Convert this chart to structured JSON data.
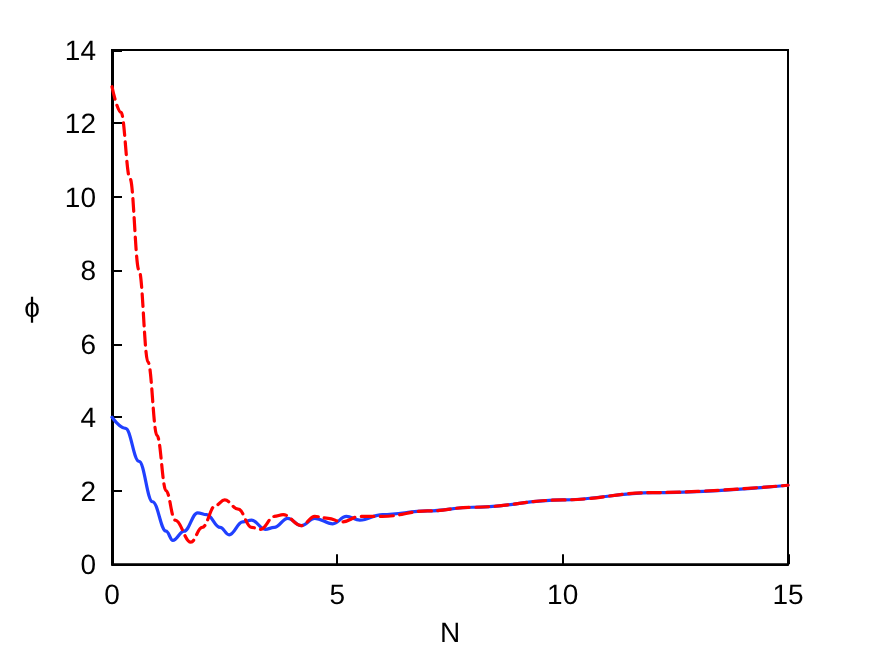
{
  "chart_data": {
    "type": "line",
    "xlabel": "N",
    "ylabel": "ϕ",
    "xlim": [
      0,
      15
    ],
    "xticks": [
      0,
      5,
      10,
      15
    ],
    "ylim": [
      0,
      14
    ],
    "yticks": [
      0,
      2,
      4,
      6,
      8,
      10,
      12,
      14
    ],
    "grid": false,
    "marker": "none",
    "series": [
      {
        "color": "#2040ff",
        "line_style": "solid",
        "x": [
          0,
          0.3,
          0.6,
          0.9,
          1.2,
          1.35,
          1.6,
          1.9,
          2.1,
          2.4,
          2.6,
          2.9,
          3.1,
          3.4,
          3.6,
          3.9,
          4.2,
          4.5,
          4.9,
          5.2,
          5.5,
          6,
          7,
          8,
          10,
          12,
          15
        ],
        "values": [
          4.0,
          3.7,
          2.8,
          1.7,
          0.9,
          0.65,
          0.9,
          1.4,
          1.35,
          1.0,
          0.8,
          1.15,
          1.2,
          0.95,
          1.0,
          1.25,
          1.05,
          1.25,
          1.1,
          1.3,
          1.2,
          1.35,
          1.45,
          1.55,
          1.75,
          1.95,
          2.15
        ]
      },
      {
        "color": "#ff0000",
        "line_style": "dashed",
        "x": [
          0,
          0.2,
          0.4,
          0.6,
          0.8,
          1.0,
          1.2,
          1.4,
          1.75,
          2.0,
          2.3,
          2.5,
          2.8,
          3.1,
          3.3,
          3.6,
          3.8,
          4.2,
          4.5,
          4.8,
          5.1,
          5.5,
          6,
          7,
          8,
          10,
          12,
          15
        ],
        "values": [
          13.0,
          12.3,
          10.5,
          8,
          5.5,
          3.5,
          2.0,
          1.2,
          0.6,
          1.0,
          1.6,
          1.75,
          1.5,
          1.0,
          0.95,
          1.3,
          1.35,
          1.05,
          1.3,
          1.25,
          1.15,
          1.3,
          1.3,
          1.45,
          1.55,
          1.75,
          1.95,
          2.15
        ]
      }
    ]
  }
}
